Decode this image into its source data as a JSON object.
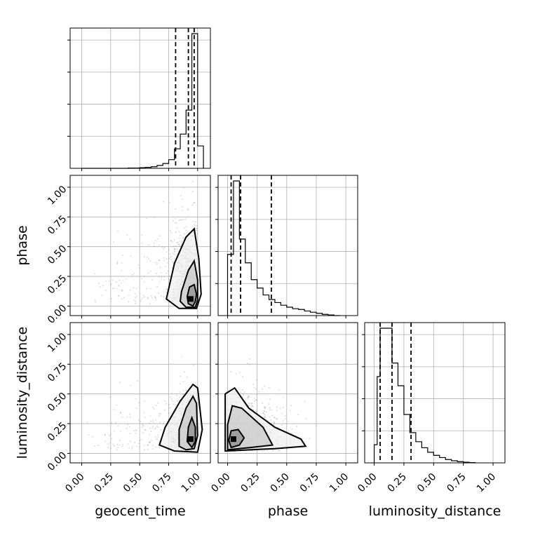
{
  "params": [
    {
      "key": "geocent_time",
      "label": "geocent_time"
    },
    {
      "key": "phase",
      "label": "phase"
    },
    {
      "key": "luminosity_distance",
      "label": "luminosity_distance"
    }
  ],
  "tick_values": [
    "0.00",
    "0.25",
    "0.50",
    "0.75",
    "1.00"
  ],
  "chart_data": {
    "type": "corner",
    "title": "",
    "axis_range": {
      "geocent_time": [
        -0.1,
        1.11
      ],
      "phase": [
        -0.08,
        1.1
      ],
      "luminosity_distance": [
        -0.08,
        1.1
      ]
    },
    "quantiles": {
      "geocent_time": [
        0.81,
        0.92,
        0.97
      ],
      "phase": [
        0.03,
        0.11,
        0.37
      ],
      "luminosity_distance": [
        0.05,
        0.15,
        0.31
      ]
    },
    "histograms": {
      "geocent_time": {
        "bin_edges": [
          0.0,
          0.05,
          0.1,
          0.15,
          0.2,
          0.25,
          0.3,
          0.35,
          0.4,
          0.45,
          0.5,
          0.55,
          0.6,
          0.65,
          0.7,
          0.75,
          0.8,
          0.85,
          0.9,
          0.95,
          1.0,
          1.05
        ],
        "counts": [
          0,
          0,
          0,
          0,
          0,
          0,
          0,
          0,
          1,
          1,
          2,
          3,
          5,
          9,
          15,
          27,
          61,
          107,
          182,
          421,
          70
        ]
      },
      "phase": {
        "bin_edges": [
          0.0,
          0.05,
          0.1,
          0.15,
          0.2,
          0.25,
          0.3,
          0.35,
          0.4,
          0.45,
          0.5,
          0.55,
          0.6,
          0.65,
          0.7,
          0.75,
          0.8,
          0.85,
          0.9,
          0.95
        ],
        "counts": [
          400,
          880,
          500,
          345,
          235,
          180,
          135,
          105,
          85,
          68,
          55,
          45,
          40,
          30,
          22,
          15,
          8,
          4,
          0
        ]
      },
      "luminosity_distance": {
        "bin_edges": [
          0.0,
          0.025,
          0.05,
          0.1,
          0.15,
          0.2,
          0.25,
          0.3,
          0.35,
          0.4,
          0.45,
          0.5,
          0.55,
          0.6,
          0.65,
          0.7,
          0.75,
          0.8,
          0.85
        ],
        "counts": [
          120,
          570,
          890,
          890,
          660,
          510,
          320,
          200,
          140,
          100,
          70,
          50,
          35,
          22,
          14,
          8,
          4,
          2
        ]
      }
    },
    "contour_levels": [
      "0.5",
      "1.0",
      "1.5",
      "2.0 sigma"
    ],
    "pairs": [
      {
        "x": "geocent_time",
        "y": "phase",
        "peak": [
          0.94,
          0.06
        ],
        "contours": [
          [
            [
              0.96,
              0.0
            ],
            [
              0.98,
              0.04
            ],
            [
              0.99,
              0.1
            ],
            [
              0.97,
              0.18
            ],
            [
              0.93,
              0.16
            ],
            [
              0.91,
              0.08
            ],
            [
              0.92,
              0.02
            ]
          ],
          [
            [
              0.98,
              -0.01
            ],
            [
              1.0,
              0.05
            ],
            [
              1.0,
              0.22
            ],
            [
              0.97,
              0.38
            ],
            [
              0.92,
              0.3
            ],
            [
              0.86,
              0.12
            ],
            [
              0.85,
              0.04
            ],
            [
              0.9,
              -0.01
            ]
          ],
          [
            [
              0.99,
              -0.02
            ],
            [
              1.03,
              0.1
            ],
            [
              1.01,
              0.4
            ],
            [
              0.97,
              0.65
            ],
            [
              0.9,
              0.58
            ],
            [
              0.8,
              0.36
            ],
            [
              0.73,
              0.06
            ],
            [
              0.84,
              -0.02
            ]
          ]
        ]
      },
      {
        "x": "geocent_time",
        "y": "luminosity_distance",
        "peak": [
          0.94,
          0.12
        ],
        "contours": [
          [
            [
              0.95,
              0.05
            ],
            [
              0.98,
              0.1
            ],
            [
              0.98,
              0.22
            ],
            [
              0.95,
              0.3
            ],
            [
              0.92,
              0.22
            ],
            [
              0.91,
              0.1
            ]
          ],
          [
            [
              0.97,
              0.04
            ],
            [
              1.0,
              0.15
            ],
            [
              0.99,
              0.42
            ],
            [
              0.96,
              0.48
            ],
            [
              0.9,
              0.38
            ],
            [
              0.84,
              0.2
            ],
            [
              0.84,
              0.06
            ],
            [
              0.9,
              0.03
            ]
          ],
          [
            [
              1.0,
              0.01
            ],
            [
              1.04,
              0.2
            ],
            [
              1.0,
              0.55
            ],
            [
              0.96,
              0.58
            ],
            [
              0.85,
              0.44
            ],
            [
              0.72,
              0.22
            ],
            [
              0.67,
              0.07
            ],
            [
              0.8,
              0.02
            ]
          ]
        ]
      },
      {
        "x": "phase",
        "y": "luminosity_distance",
        "peak": [
          0.05,
          0.12
        ],
        "contours": [
          [
            [
              0.03,
              0.05
            ],
            [
              0.1,
              0.07
            ],
            [
              0.14,
              0.13
            ],
            [
              0.09,
              0.2
            ],
            [
              0.03,
              0.19
            ],
            [
              0.01,
              0.11
            ]
          ],
          [
            [
              0.0,
              0.03
            ],
            [
              0.2,
              0.05
            ],
            [
              0.38,
              0.07
            ],
            [
              0.3,
              0.22
            ],
            [
              0.12,
              0.38
            ],
            [
              0.04,
              0.4
            ],
            [
              0.0,
              0.24
            ]
          ],
          [
            [
              -0.02,
              0.02
            ],
            [
              0.4,
              0.04
            ],
            [
              0.66,
              0.06
            ],
            [
              0.62,
              0.12
            ],
            [
              0.4,
              0.22
            ],
            [
              0.18,
              0.38
            ],
            [
              0.06,
              0.55
            ],
            [
              -0.02,
              0.5
            ]
          ]
        ]
      }
    ]
  }
}
